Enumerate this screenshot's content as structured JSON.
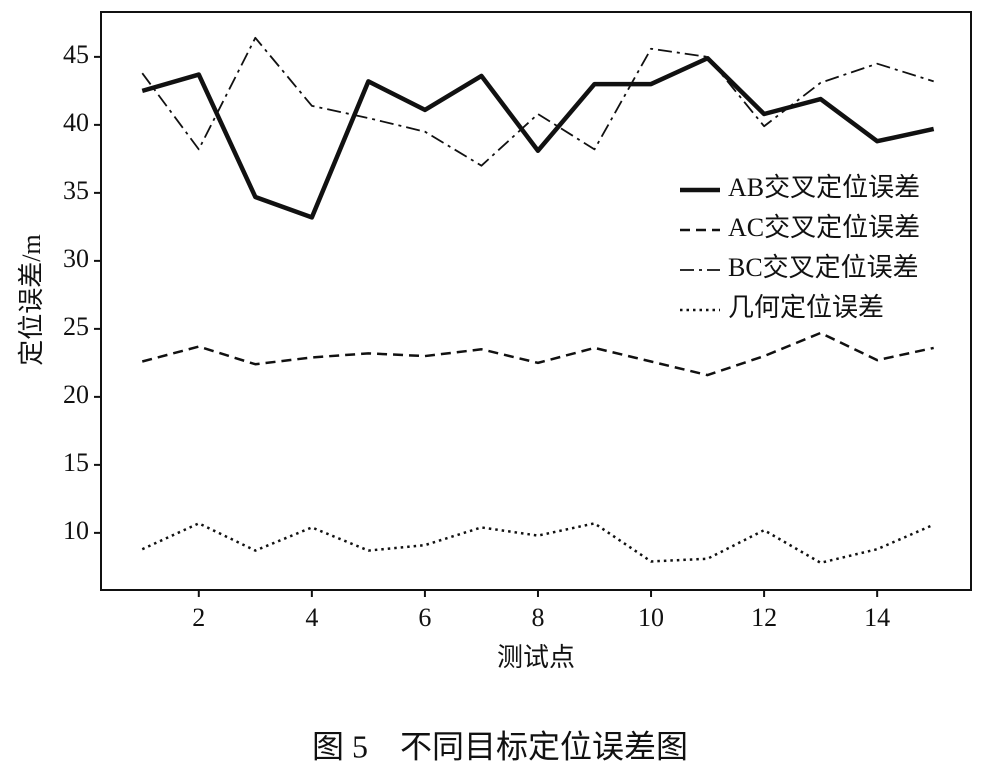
{
  "chart_data": {
    "type": "line",
    "caption": "图 5　不同目标定位误差图",
    "xlabel": "测试点",
    "ylabel": "定位误差/m",
    "x": [
      1,
      2,
      3,
      4,
      5,
      6,
      7,
      8,
      9,
      10,
      11,
      12,
      13,
      14,
      15
    ],
    "series": [
      {
        "name": "AB交叉定位误差",
        "color": "#111111",
        "linestyle": "solid",
        "values": [
          42.5,
          43.7,
          34.7,
          33.2,
          43.2,
          41.1,
          43.6,
          38.1,
          43.0,
          43.0,
          44.9,
          40.8,
          41.9,
          38.8,
          39.7
        ]
      },
      {
        "name": "AC交叉定位误差",
        "color": "#111111",
        "linestyle": "dashed",
        "values": [
          22.6,
          23.7,
          22.4,
          22.9,
          23.2,
          23.0,
          23.5,
          22.5,
          23.6,
          22.6,
          21.6,
          23.0,
          24.7,
          22.7,
          23.6
        ]
      },
      {
        "name": "BC交叉定位误差",
        "color": "#111111",
        "linestyle": "dashdot",
        "values": [
          43.8,
          38.2,
          46.4,
          41.4,
          40.5,
          39.5,
          37.0,
          40.8,
          38.2,
          45.6,
          45.0,
          39.9,
          43.1,
          44.5,
          43.2
        ]
      },
      {
        "name": "几何定位误差",
        "color": "#111111",
        "linestyle": "dotted",
        "values": [
          8.8,
          10.7,
          8.7,
          10.4,
          8.7,
          9.1,
          10.4,
          9.8,
          10.7,
          7.9,
          8.1,
          10.2,
          7.8,
          8.8,
          10.6
        ]
      }
    ],
    "xlim": [
      0.27,
      15.66
    ],
    "ylim": [
      5.8,
      48.3
    ],
    "xticks": [
      2,
      4,
      6,
      8,
      10,
      12,
      14
    ],
    "yticks": [
      10,
      15,
      20,
      25,
      30,
      35,
      40,
      45
    ],
    "legend": "upper right"
  }
}
